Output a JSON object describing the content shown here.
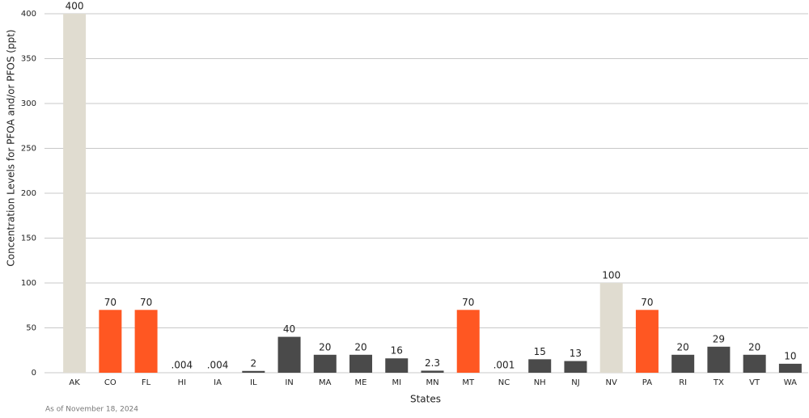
{
  "chart_data": {
    "type": "bar",
    "x_label": "States",
    "y_label": "Concentration Levels for PFOA and/or PFOS (ppt)",
    "note": "As of November 18, 2024",
    "categories": [
      "AK",
      "CO",
      "FL",
      "HI",
      "IA",
      "IL",
      "IN",
      "MA",
      "ME",
      "MI",
      "MN",
      "MT",
      "NC",
      "NH",
      "NJ",
      "NV",
      "PA",
      "RI",
      "TX",
      "VT",
      "WA"
    ],
    "values": [
      400,
      70,
      70,
      0.004,
      0.004,
      2,
      40,
      20,
      20,
      16,
      2.3,
      70,
      0.001,
      15,
      13,
      100,
      70,
      20,
      29,
      20,
      10
    ],
    "value_labels": [
      "400",
      "70",
      "70",
      ".004",
      ".004",
      "2",
      "40",
      "20",
      "20",
      "16",
      "2.3",
      "70",
      ".001",
      "15",
      "13",
      "100",
      "70",
      "20",
      "29",
      "20",
      "10"
    ],
    "colors": [
      "#e0dcd0",
      "#ff5722",
      "#ff5722",
      "#4a4a4a",
      "#4a4a4a",
      "#4a4a4a",
      "#4a4a4a",
      "#4a4a4a",
      "#4a4a4a",
      "#4a4a4a",
      "#4a4a4a",
      "#ff5722",
      "#4a4a4a",
      "#4a4a4a",
      "#4a4a4a",
      "#e0dcd0",
      "#ff5722",
      "#4a4a4a",
      "#4a4a4a",
      "#4a4a4a",
      "#4a4a4a"
    ],
    "ylim": [
      0,
      400
    ],
    "yticks": [
      0,
      50,
      100,
      150,
      200,
      250,
      300,
      350,
      400
    ],
    "grid": true
  }
}
